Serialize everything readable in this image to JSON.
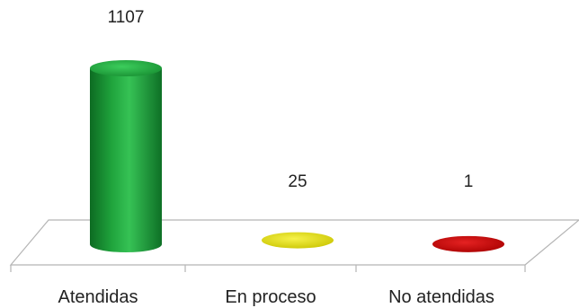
{
  "chart_data": {
    "type": "bar",
    "style": "3d-cylinder",
    "categories": [
      "Atendidas",
      "En proceso",
      "No atendidas"
    ],
    "values": [
      1107,
      25,
      1
    ],
    "data_labels": [
      "1107",
      "25",
      "1"
    ],
    "colors": [
      "#1fa33c",
      "#e3e000",
      "#cc0000"
    ],
    "title": "",
    "xlabel": "",
    "ylabel": "",
    "ylim": [
      0,
      1107
    ],
    "grid": false,
    "legend": "none"
  }
}
